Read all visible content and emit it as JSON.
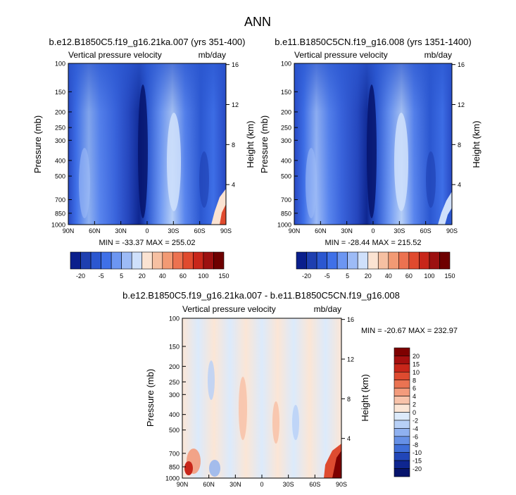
{
  "page_title": "ANN",
  "chart_data": [
    {
      "type": "heatmap",
      "title": "b.e12.B1850C5.f19_g16.21ka.007 (yrs 351-400)",
      "left_label": "Vertical pressure velocity",
      "right_label": "mb/day",
      "ylabel": "Pressure (mb)",
      "ylabel_right": "Height (km)",
      "xticks": [
        "90N",
        "60N",
        "30N",
        "0",
        "30S",
        "60S",
        "90S"
      ],
      "yticks": [
        100,
        150,
        200,
        250,
        300,
        400,
        500,
        700,
        850,
        1000
      ],
      "ylim": [
        100,
        1000
      ],
      "y_log": true,
      "height_ticks": [
        16,
        12,
        8,
        4
      ],
      "stats": "MIN = -33.37  MAX = 255.02",
      "colorbar": {
        "labels": [
          "-20",
          "-5",
          "5",
          "20",
          "40",
          "60",
          "100",
          "150"
        ],
        "colors": [
          "#0a1f8c",
          "#1e3fb0",
          "#2b57d0",
          "#3f70e8",
          "#6c96f2",
          "#9dbbf6",
          "#cfe0fb",
          "#fbe3d2",
          "#f6c0a2",
          "#f29a74",
          "#ec7250",
          "#e04a2e",
          "#c8261a",
          "#9c1010",
          "#6e0000"
        ]
      }
    },
    {
      "type": "heatmap",
      "title": "b.e11.B1850C5CN.f19_g16.008 (yrs 1351-1400)",
      "left_label": "Vertical pressure velocity",
      "right_label": "mb/day",
      "ylabel": "Pressure (mb)",
      "ylabel_right": "Height (km)",
      "xticks": [
        "90N",
        "60N",
        "30N",
        "0",
        "30S",
        "60S",
        "90S"
      ],
      "yticks": [
        100,
        150,
        200,
        250,
        300,
        400,
        500,
        700,
        850,
        1000
      ],
      "ylim": [
        100,
        1000
      ],
      "y_log": true,
      "height_ticks": [
        16,
        12,
        8,
        4
      ],
      "stats": "MIN = -28.44  MAX = 215.52",
      "colorbar": {
        "labels": [
          "-20",
          "-5",
          "5",
          "20",
          "40",
          "60",
          "100",
          "150"
        ],
        "colors": [
          "#0a1f8c",
          "#1e3fb0",
          "#2b57d0",
          "#3f70e8",
          "#6c96f2",
          "#9dbbf6",
          "#cfe0fb",
          "#fbe3d2",
          "#f6c0a2",
          "#f29a74",
          "#ec7250",
          "#e04a2e",
          "#c8261a",
          "#9c1010",
          "#6e0000"
        ]
      }
    },
    {
      "type": "heatmap",
      "title": "b.e12.B1850C5.f19_g16.21ka.007 - b.e11.B1850C5CN.f19_g16.008",
      "left_label": "Vertical pressure velocity",
      "right_label": "mb/day",
      "ylabel": "Pressure (mb)",
      "ylabel_right": "Height (km)",
      "xticks": [
        "90N",
        "60N",
        "30N",
        "0",
        "30S",
        "60S",
        "90S"
      ],
      "yticks": [
        100,
        150,
        200,
        250,
        300,
        400,
        500,
        700,
        850,
        1000
      ],
      "ylim": [
        100,
        1000
      ],
      "y_log": true,
      "height_ticks": [
        16,
        12,
        8,
        4
      ],
      "stats": "MIN = -20.67  MAX = 232.97",
      "colorbar": {
        "labels": [
          "20",
          "15",
          "10",
          "8",
          "6",
          "4",
          "2",
          "0",
          "-2",
          "-4",
          "-6",
          "-8",
          "-10",
          "-15",
          "-20"
        ],
        "colors": [
          "#7e0000",
          "#a50f0f",
          "#c8261a",
          "#de4b30",
          "#ea7352",
          "#f39b7c",
          "#f8c3aa",
          "#fbe6d6",
          "#dceafb",
          "#b7d0f7",
          "#8fb1f0",
          "#6690e6",
          "#3f6ed8",
          "#2146b8",
          "#0e2690",
          "#06146c"
        ]
      }
    }
  ]
}
